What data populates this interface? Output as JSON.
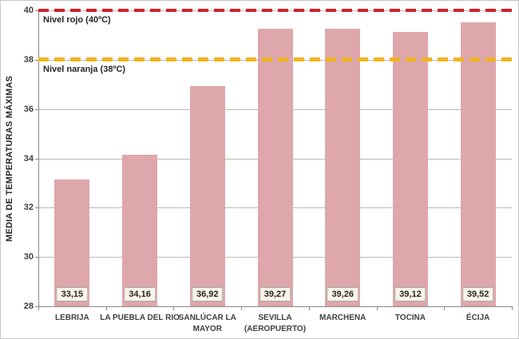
{
  "chart_data": {
    "type": "bar",
    "title": "",
    "xlabel": "",
    "ylabel": "MEDIA DE TEMPERATURAS MÁXIMAS",
    "categories": [
      "LEBRIJA",
      "LA PUEBLA DEL RIO",
      "SANLÚCAR LA MAYOR",
      "SEVILLA (AEROPUERTO)",
      "MARCHENA",
      "TOCINA",
      "ÉCIJA"
    ],
    "category_lines": [
      [
        "LEBRIJA"
      ],
      [
        "LA PUEBLA DEL RIO"
      ],
      [
        "SANLÚCAR LA",
        "MAYOR"
      ],
      [
        "SEVILLA",
        "(AEROPUERTO)"
      ],
      [
        "MARCHENA"
      ],
      [
        "TOCINA"
      ],
      [
        "ÉCIJA"
      ]
    ],
    "values": [
      33.15,
      34.16,
      36.92,
      39.27,
      39.26,
      39.12,
      39.52
    ],
    "value_labels": [
      "33,15",
      "34,16",
      "36,92",
      "39,27",
      "39,26",
      "39,12",
      "39,52"
    ],
    "ylim": [
      28,
      40
    ],
    "yticks": [
      28,
      30,
      32,
      34,
      36,
      38,
      40
    ],
    "grid": true,
    "legend_position": "none",
    "bar_color": "#dea7ab",
    "gridline_color": "#b9b9b9",
    "axis_color": "#8a8a8a",
    "value_label_box": {
      "bg": "#f8f4e8",
      "border": "#a9a9a9"
    },
    "reference_lines": [
      {
        "name": "red-level",
        "value": 40,
        "label": "Nivel rojo (40ºC)",
        "color": "#d12228"
      },
      {
        "name": "orange-level",
        "value": 38,
        "label": "Nivel naranja (38ºC)",
        "color": "#f0b320"
      }
    ]
  }
}
